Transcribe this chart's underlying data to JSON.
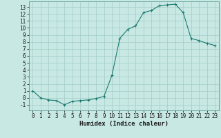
{
  "x": [
    0,
    1,
    2,
    3,
    4,
    5,
    6,
    7,
    8,
    9,
    10,
    11,
    12,
    13,
    14,
    15,
    16,
    17,
    18,
    19,
    20,
    21,
    22,
    23
  ],
  "y": [
    1,
    0,
    -0.3,
    -0.4,
    -1,
    -0.5,
    -0.4,
    -0.3,
    -0.1,
    0.2,
    3.2,
    8.5,
    9.8,
    10.3,
    12.2,
    12.5,
    13.2,
    13.3,
    13.4,
    12.2,
    8.5,
    8.2,
    7.8,
    7.5
  ],
  "xlabel": "Humidex (Indice chaleur)",
  "xlim": [
    -0.5,
    23.5
  ],
  "ylim": [
    -1.8,
    13.8
  ],
  "yticks": [
    -1,
    0,
    1,
    2,
    3,
    4,
    5,
    6,
    7,
    8,
    9,
    10,
    11,
    12,
    13
  ],
  "xticks": [
    0,
    1,
    2,
    3,
    4,
    5,
    6,
    7,
    8,
    9,
    10,
    11,
    12,
    13,
    14,
    15,
    16,
    17,
    18,
    19,
    20,
    21,
    22,
    23
  ],
  "line_color": "#1a7a6e",
  "bg_color": "#c8e8e4",
  "grid_color": "#a0ccc8",
  "spine_color": "#5a9a94",
  "font_color": "#1a1a1a",
  "tick_fontsize": 5.5,
  "xlabel_fontsize": 6.5
}
